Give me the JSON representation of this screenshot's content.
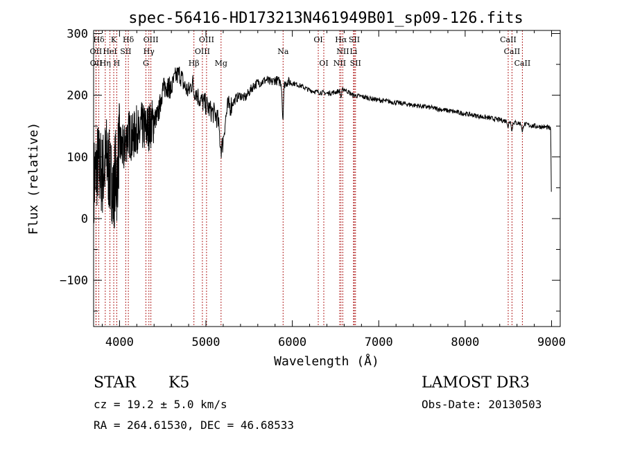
{
  "chart_data": {
    "type": "line",
    "title": "spec-56416-HD173213N461949B01_sp09-126.fits",
    "xlabel": "Wavelength (Å)",
    "ylabel": "Flux (relative)",
    "xlim": [
      3700,
      9100
    ],
    "ylim": [
      -175,
      305
    ],
    "xticks": [
      4000,
      5000,
      6000,
      7000,
      8000,
      9000
    ],
    "xtick_labels": [
      "4000",
      "5000",
      "6000",
      "7000",
      "8000",
      "9000"
    ],
    "yticks": [
      -100,
      0,
      100,
      200,
      300
    ],
    "ytick_labels": [
      "−100",
      "0",
      "100",
      "200",
      "300"
    ],
    "series_color": "#000000",
    "line_color": "#b22222",
    "spectrum_anchors": [
      [
        3700,
        60
      ],
      [
        3750,
        90
      ],
      [
        3800,
        70
      ],
      [
        3850,
        100
      ],
      [
        3900,
        60
      ],
      [
        3950,
        110
      ],
      [
        4000,
        120
      ],
      [
        4050,
        110
      ],
      [
        4100,
        140
      ],
      [
        4150,
        130
      ],
      [
        4200,
        145
      ],
      [
        4250,
        150
      ],
      [
        4300,
        145
      ],
      [
        4350,
        150
      ],
      [
        4400,
        160
      ],
      [
        4450,
        170
      ],
      [
        4500,
        210
      ],
      [
        4550,
        215
      ],
      [
        4600,
        210
      ],
      [
        4650,
        230
      ],
      [
        4700,
        235
      ],
      [
        4750,
        215
      ],
      [
        4800,
        205
      ],
      [
        4850,
        225
      ],
      [
        4900,
        200
      ],
      [
        4950,
        190
      ],
      [
        5000,
        185
      ],
      [
        5050,
        175
      ],
      [
        5100,
        170
      ],
      [
        5150,
        160
      ],
      [
        5200,
        140
      ],
      [
        5250,
        180
      ],
      [
        5300,
        185
      ],
      [
        5350,
        195
      ],
      [
        5400,
        200
      ],
      [
        5450,
        195
      ],
      [
        5500,
        205
      ],
      [
        5550,
        215
      ],
      [
        5600,
        220
      ],
      [
        5650,
        222
      ],
      [
        5700,
        225
      ],
      [
        5750,
        220
      ],
      [
        5800,
        225
      ],
      [
        5850,
        222
      ],
      [
        5900,
        218
      ],
      [
        5950,
        222
      ],
      [
        6000,
        220
      ],
      [
        6100,
        215
      ],
      [
        6200,
        208
      ],
      [
        6300,
        205
      ],
      [
        6400,
        203
      ],
      [
        6500,
        205
      ],
      [
        6600,
        210
      ],
      [
        6700,
        200
      ],
      [
        6800,
        198
      ],
      [
        6900,
        195
      ],
      [
        7000,
        192
      ],
      [
        7200,
        188
      ],
      [
        7400,
        184
      ],
      [
        7600,
        180
      ],
      [
        7800,
        175
      ],
      [
        8000,
        170
      ],
      [
        8200,
        165
      ],
      [
        8400,
        160
      ],
      [
        8600,
        155
      ],
      [
        8800,
        150
      ],
      [
        8950,
        148
      ],
      [
        8990,
        145
      ],
      [
        9000,
        0
      ]
    ],
    "absorption_features": [
      {
        "x": 5890,
        "depth": 55,
        "width": 10
      },
      {
        "x": 5175,
        "depth": 35,
        "width": 25
      },
      {
        "x": 4861,
        "depth": 15,
        "width": 12
      },
      {
        "x": 6563,
        "depth": 12,
        "width": 10
      },
      {
        "x": 8542,
        "depth": 15,
        "width": 8
      },
      {
        "x": 8662,
        "depth": 15,
        "width": 8
      },
      {
        "x": 8498,
        "depth": 10,
        "width": 8
      },
      {
        "x": 4227,
        "depth": 20,
        "width": 10
      },
      {
        "x": 3933,
        "depth": 60,
        "width": 15
      },
      {
        "x": 3968,
        "depth": 55,
        "width": 15
      }
    ],
    "line_markers": [
      {
        "label": "Hδ",
        "x": 3760,
        "row": 0
      },
      {
        "label": "K",
        "x": 3933,
        "row": 0
      },
      {
        "label": "Hδ",
        "x": 4102,
        "row": 0
      },
      {
        "label": "OIII",
        "x": 4363,
        "row": 0
      },
      {
        "label": "OIII",
        "x": 5007,
        "row": 0
      },
      {
        "label": "OI",
        "x": 6300,
        "row": 0
      },
      {
        "label": "Hα",
        "x": 6563,
        "row": 0
      },
      {
        "label": "SII",
        "x": 6717,
        "row": 0
      },
      {
        "label": "CaII",
        "x": 8498,
        "row": 0
      },
      {
        "label": "OII",
        "x": 3727,
        "row": 1
      },
      {
        "label": "HeI",
        "x": 3889,
        "row": 1
      },
      {
        "label": "SII",
        "x": 4072,
        "row": 1
      },
      {
        "label": "Hγ",
        "x": 4340,
        "row": 1
      },
      {
        "label": "OIII",
        "x": 4959,
        "row": 1
      },
      {
        "label": "Na",
        "x": 5893,
        "row": 1
      },
      {
        "label": "NII",
        "x": 6584,
        "row": 1
      },
      {
        "label": "Li",
        "x": 6708,
        "row": 1
      },
      {
        "label": "CaII",
        "x": 8542,
        "row": 1
      },
      {
        "label": "OII",
        "x": 3729,
        "row": 2
      },
      {
        "label": "Hη",
        "x": 3835,
        "row": 2
      },
      {
        "label": "H",
        "x": 3968,
        "row": 2
      },
      {
        "label": "G",
        "x": 4305,
        "row": 2
      },
      {
        "label": "Hβ",
        "x": 4861,
        "row": 2
      },
      {
        "label": "Mg",
        "x": 5175,
        "row": 2
      },
      {
        "label": "OI",
        "x": 6364,
        "row": 2
      },
      {
        "label": "NII",
        "x": 6548,
        "row": 2
      },
      {
        "label": "SII",
        "x": 6731,
        "row": 2
      },
      {
        "label": "CaII",
        "x": 8662,
        "row": 2
      }
    ]
  },
  "info": {
    "object_type": "STAR",
    "subclass": "K5",
    "survey": "LAMOST DR3",
    "cz": "cz = 19.2 ± 5.0 km/s",
    "obs_date": "Obs-Date: 20130503",
    "coords": "RA = 264.61530, DEC =  46.68533"
  }
}
